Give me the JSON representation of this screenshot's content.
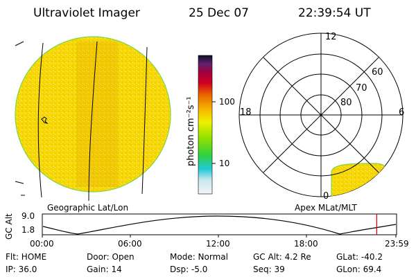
{
  "header": {
    "instrument": "Ultraviolet Imager",
    "date": "25 Dec 07",
    "time": "22:39:54 UT"
  },
  "colorbar": {
    "unit_label": "photon cm⁻²s⁻¹",
    "ticks": [
      "100",
      "10"
    ]
  },
  "polar": {
    "mlt_labels": [
      "12",
      "18",
      "6",
      "0"
    ],
    "lat_labels": [
      "60",
      "70",
      "80"
    ]
  },
  "panel_labels": {
    "left": "Geographic Lat/Lon",
    "right": "Apex MLat/MLT"
  },
  "altitude_plot": {
    "ylabel": "GC Alt",
    "ymax": "9.0",
    "ymin": "1.8",
    "x_ticks": [
      "00:00",
      "06:00",
      "12:00",
      "18:00",
      "23:59"
    ],
    "current_time_fraction": 0.944
  },
  "info": {
    "flt": "Flt: HOME",
    "ip": "IP: 36.0",
    "door": "Door: Open",
    "gain": "Gain: 14",
    "mode": "Mode: Normal",
    "dsp": "Dsp:   -5.0",
    "gc_alt": "GC Alt: 4.2 Re",
    "seq": "Seq: 39",
    "glat": "GLat: -40.2",
    "glon": "GLon:  69.4"
  },
  "colors": {
    "image_fill": "#f5d400",
    "image_edge": "#7ad64a",
    "marker": "#cc0000"
  }
}
